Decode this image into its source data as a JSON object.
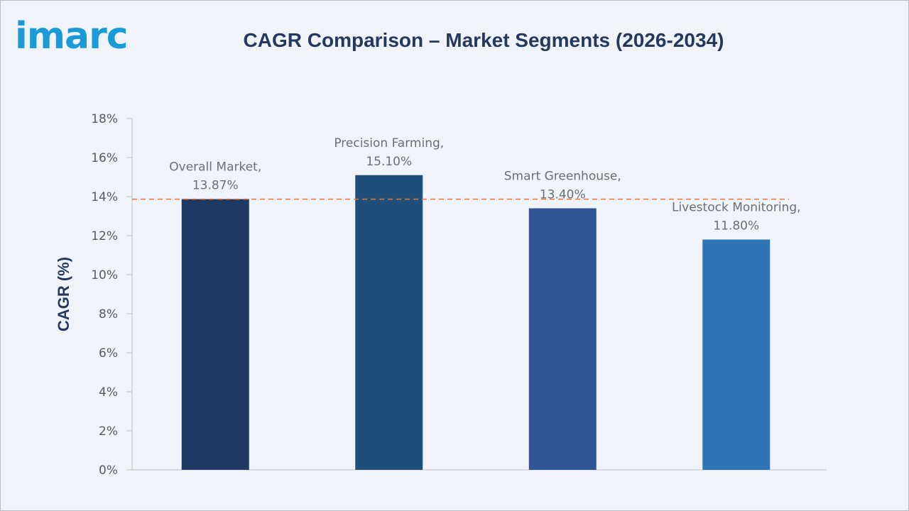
{
  "header": {
    "logo_text": "imarc",
    "title": "CAGR Comparison – Market Segments (2026-2034)"
  },
  "chart_data": {
    "type": "bar",
    "title": "CAGR Comparison – Market Segments (2026-2034)",
    "ylabel": "CAGR (%)",
    "xlabel": "",
    "ylim": [
      0,
      18
    ],
    "yticks": [
      0,
      2,
      4,
      6,
      8,
      10,
      12,
      14,
      16,
      18
    ],
    "ytick_labels": [
      "0%",
      "2%",
      "4%",
      "6%",
      "8%",
      "10%",
      "12%",
      "14%",
      "16%",
      "18%"
    ],
    "categories": [
      "Overall Market",
      "Precision Farming",
      "Smart Greenhouse",
      "Livestock Monitoring"
    ],
    "values": [
      13.87,
      15.1,
      13.4,
      11.8
    ],
    "data_labels": [
      [
        "Overall Market,",
        "13.87%"
      ],
      [
        "Precision Farming,",
        "15.10%"
      ],
      [
        "Smart Greenhouse,",
        "13.40%"
      ],
      [
        "Livestock Monitoring,",
        "11.80%"
      ]
    ],
    "bar_colors": [
      "#1f3864",
      "#1f4e79",
      "#2f5597",
      "#2e75b6"
    ],
    "reference_line": {
      "value": 13.87,
      "style": "dashed",
      "color": "#e07b39"
    },
    "grid": false,
    "legend": "none"
  }
}
